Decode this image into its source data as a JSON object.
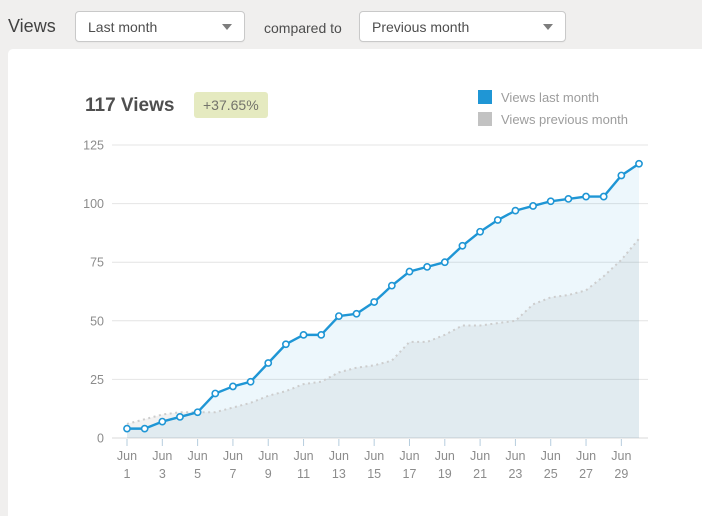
{
  "header": {
    "title": "Views",
    "metric_select": {
      "value": "Last month",
      "icon": "chevron-down-icon"
    },
    "compare_label": "compared to",
    "compare_select": {
      "value": "Previous month",
      "icon": "chevron-down-icon"
    }
  },
  "summary": {
    "total": "117 Views",
    "change_badge": "+37.65%"
  },
  "legend": [
    {
      "label": "Views last month",
      "color": "#1f96d5"
    },
    {
      "label": "Views previous month",
      "color": "#c2c2c2"
    }
  ],
  "chart_data": {
    "type": "line",
    "title": "Cumulative views, last month vs previous month",
    "x_month": "Jun",
    "days": [
      1,
      2,
      3,
      4,
      5,
      6,
      7,
      8,
      9,
      10,
      11,
      12,
      13,
      14,
      15,
      16,
      17,
      18,
      19,
      20,
      21,
      22,
      23,
      24,
      25,
      26,
      27,
      28,
      29,
      30
    ],
    "series": [
      {
        "name": "Views last month",
        "color": "#1f96d5",
        "style": "solid",
        "markers": true,
        "fill": "rgba(31,150,213,0.08)",
        "values": [
          4,
          4,
          7,
          9,
          11,
          19,
          22,
          24,
          32,
          40,
          44,
          44,
          52,
          53,
          58,
          65,
          71,
          73,
          75,
          82,
          88,
          93,
          97,
          99,
          101,
          102,
          103,
          103,
          112,
          117
        ]
      },
      {
        "name": "Views previous month",
        "color": "#cdcdcd",
        "style": "dotted",
        "markers": false,
        "fill": "rgba(128,128,128,0.10)",
        "values": [
          6,
          8,
          10,
          11,
          11,
          11,
          13,
          15,
          18,
          20,
          23,
          24,
          28,
          30,
          31,
          33,
          41,
          41,
          44,
          48,
          48,
          49,
          50,
          57,
          60,
          61,
          63,
          69,
          76,
          85
        ]
      }
    ],
    "ylim": [
      0,
      125
    ],
    "yticks": [
      0,
      25,
      50,
      75,
      100,
      125
    ],
    "xtick_days": [
      1,
      3,
      5,
      7,
      9,
      11,
      13,
      15,
      17,
      19,
      21,
      23,
      25,
      27,
      29
    ],
    "grid": "horizontal",
    "legend_position": "top-right",
    "colors": {
      "gridline": "#e4e4e4",
      "baseline": "#d9d9d9",
      "tick": "#b6cdde",
      "axis_text": "#8c8c8c"
    }
  }
}
